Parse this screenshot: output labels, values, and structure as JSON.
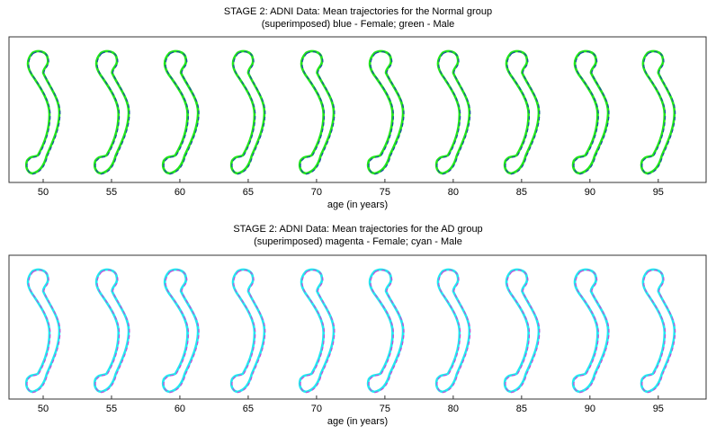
{
  "chart_data": [
    {
      "type": "scatter",
      "title": "STAGE 2: ADNI Data: Mean trajectories for the Normal group",
      "subtitle": "(superimposed) blue - Female; green - Male",
      "xlabel": "age (in years)",
      "x": [
        50,
        55,
        60,
        65,
        70,
        75,
        80,
        85,
        90,
        95
      ],
      "xlim": [
        47.5,
        98.5
      ],
      "series": [
        {
          "name": "Female",
          "color": "#1a4fa0"
        },
        {
          "name": "Male",
          "color": "#22e61c"
        }
      ],
      "grid": false
    },
    {
      "type": "scatter",
      "title": "STAGE 2: ADNI Data: Mean trajectories for the AD group",
      "subtitle": "(superimposed) magenta - Female; cyan - Male",
      "xlabel": "age (in years)",
      "x": [
        50,
        55,
        60,
        65,
        70,
        75,
        80,
        85,
        90,
        95
      ],
      "xlim": [
        47.5,
        98.5
      ],
      "series": [
        {
          "name": "Female",
          "color": "#c04fd8"
        },
        {
          "name": "Male",
          "color": "#22e8f0"
        }
      ],
      "grid": false
    }
  ]
}
